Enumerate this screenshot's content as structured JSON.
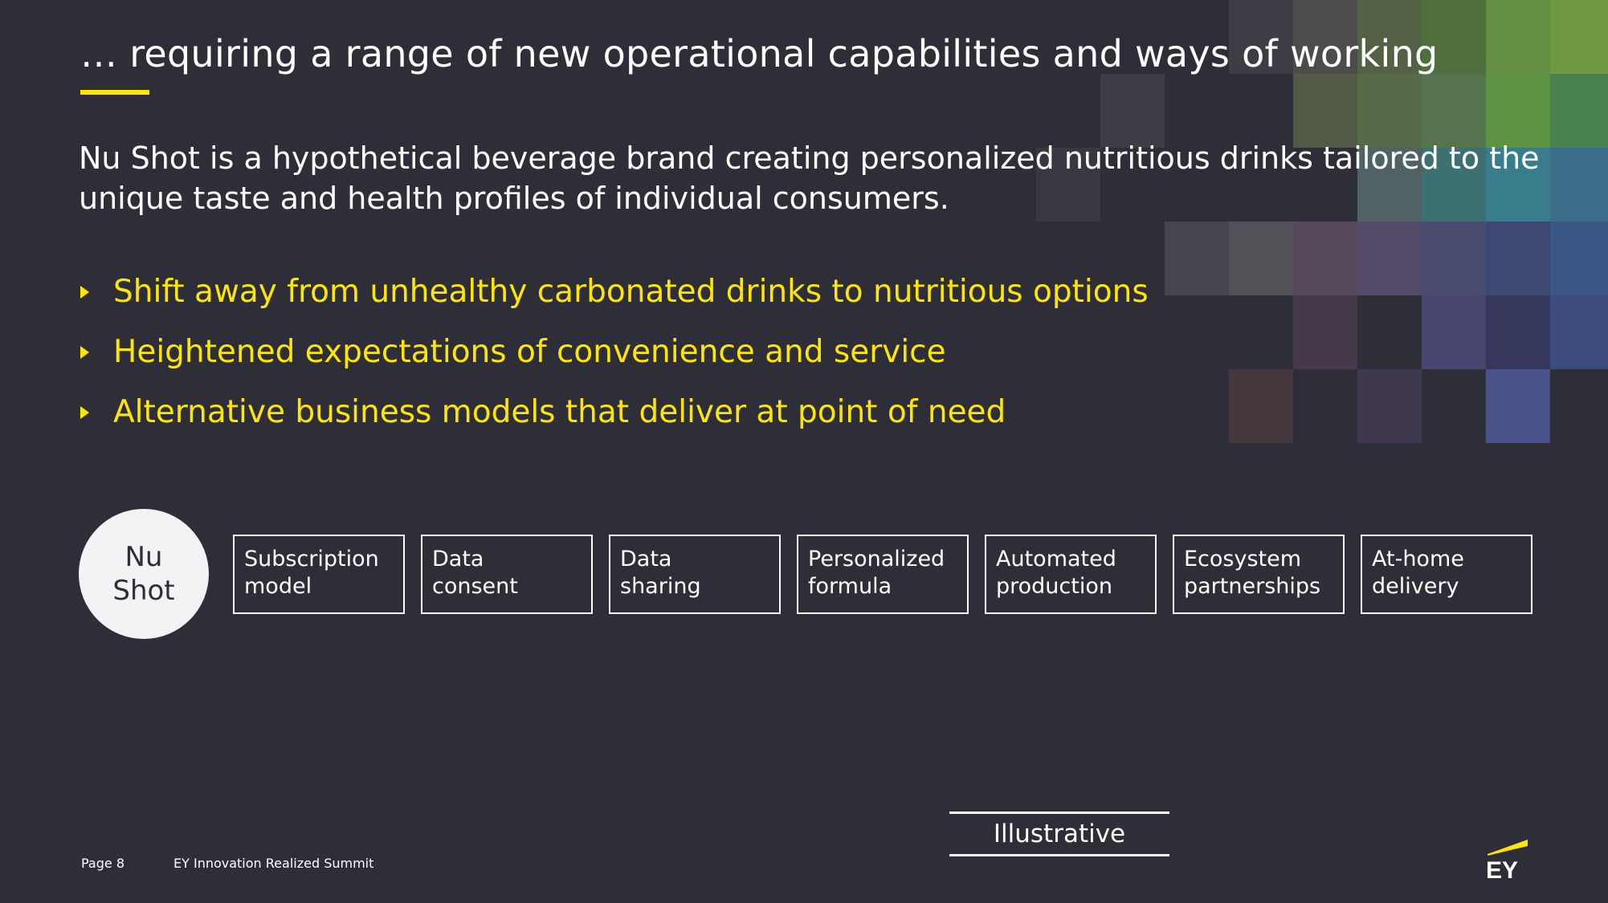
{
  "slide": {
    "title": "… requiring a range of new operational capabilities and ways of working",
    "intro": "Nu Shot is a hypothetical beverage brand creating personalized nutritious drinks tailored to the unique taste and health profiles of individual consumers.",
    "bullets": [
      "Shift away from unhealthy carbonated drinks to nutritious options",
      "Heightened expectations of convenience and service",
      "Alternative business models that deliver at point of need"
    ],
    "brand_circle": {
      "line1": "Nu",
      "line2": "Shot"
    },
    "capabilities": [
      {
        "line1": "Subscription",
        "line2": "model"
      },
      {
        "line1": "Data",
        "line2": "consent"
      },
      {
        "line1": "Data",
        "line2": "sharing"
      },
      {
        "line1": "Personalized",
        "line2": "formula"
      },
      {
        "line1": "Automated",
        "line2": "production"
      },
      {
        "line1": "Ecosystem",
        "line2": "partnerships"
      },
      {
        "line1": "At-home",
        "line2": "delivery"
      }
    ],
    "label": "Illustrative"
  },
  "footer": {
    "page": "Page 8",
    "event": "EY Innovation Realized Summit"
  },
  "logo": {
    "text": "EY",
    "icon": "ey-logo-icon"
  },
  "colors": {
    "background": "#2e2e38",
    "accent": "#ffe600",
    "text": "#ffffff"
  }
}
